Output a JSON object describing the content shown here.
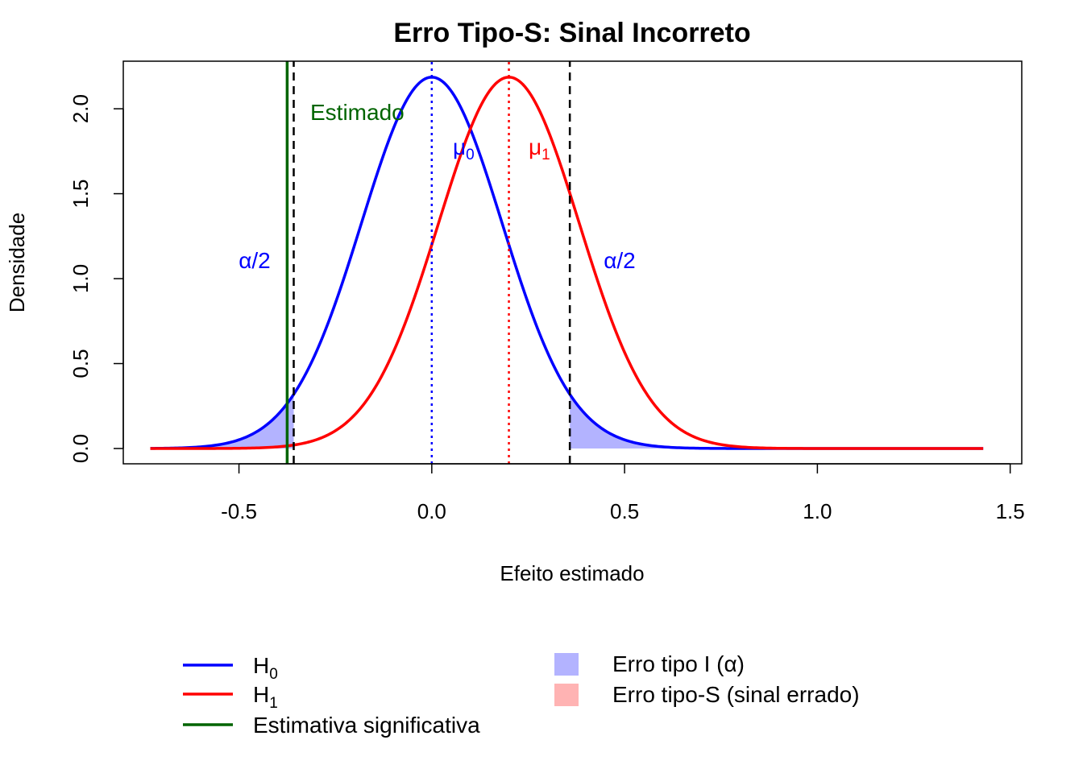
{
  "chart_data": {
    "type": "line",
    "title": "Erro Tipo-S: Sinal Incorreto",
    "xlabel": "Efeito estimado",
    "ylabel": "Densidade",
    "xlim": [
      -0.8,
      1.53
    ],
    "ylim": [
      -0.09,
      2.28
    ],
    "x_ticks": [
      -0.5,
      0.0,
      0.5,
      1.0,
      1.5
    ],
    "x_tick_labels": [
      "-0.5",
      "0.0",
      "0.5",
      "1.0",
      "1.5"
    ],
    "y_ticks": [
      0.0,
      0.5,
      1.0,
      1.5,
      2.0
    ],
    "y_tick_labels": [
      "0.0",
      "0.5",
      "1.0",
      "1.5",
      "2.0"
    ],
    "x_range": [
      -0.73,
      1.43
    ],
    "series": [
      {
        "name": "H0",
        "distribution": "normal",
        "mean": 0.0,
        "sd": 0.1825,
        "color": "#0000ff"
      },
      {
        "name": "H1",
        "distribution": "normal",
        "mean": 0.2,
        "sd": 0.1825,
        "color": "#ff0000"
      }
    ],
    "critical_values": [
      -0.358,
      0.358
    ],
    "estimate": -0.375,
    "shaded_tails": {
      "series": "H0",
      "color": "#b3b3ff"
    },
    "grid": false,
    "legend_position": "bottom"
  },
  "annotations": {
    "estimado": "Estimado",
    "mu0": "μ",
    "mu0_sub": "0",
    "mu1": "μ",
    "mu1_sub": "1",
    "alpha_left": "α/2",
    "alpha_right": "α/2"
  },
  "legend": {
    "items": [
      {
        "label": "H",
        "sub": "0",
        "color": "#0000ff",
        "kind": "line"
      },
      {
        "label": "H",
        "sub": "1",
        "color": "#ff0000",
        "kind": "line"
      },
      {
        "label": "Estimativa significativa",
        "sub": "",
        "color": "#006400",
        "kind": "line"
      },
      {
        "label": "Erro tipo I (α)",
        "sub": "",
        "color": "#b3b3ff",
        "kind": "box"
      },
      {
        "label": "Erro tipo-S (sinal errado)",
        "sub": "",
        "color": "#ffb3b3",
        "kind": "box"
      }
    ]
  },
  "colors": {
    "h0": "#0000ff",
    "h1": "#ff0000",
    "estimate": "#006400",
    "critical": "#000000",
    "type1_fill": "#b3b3ff",
    "types_fill": "#ffb3b3"
  }
}
